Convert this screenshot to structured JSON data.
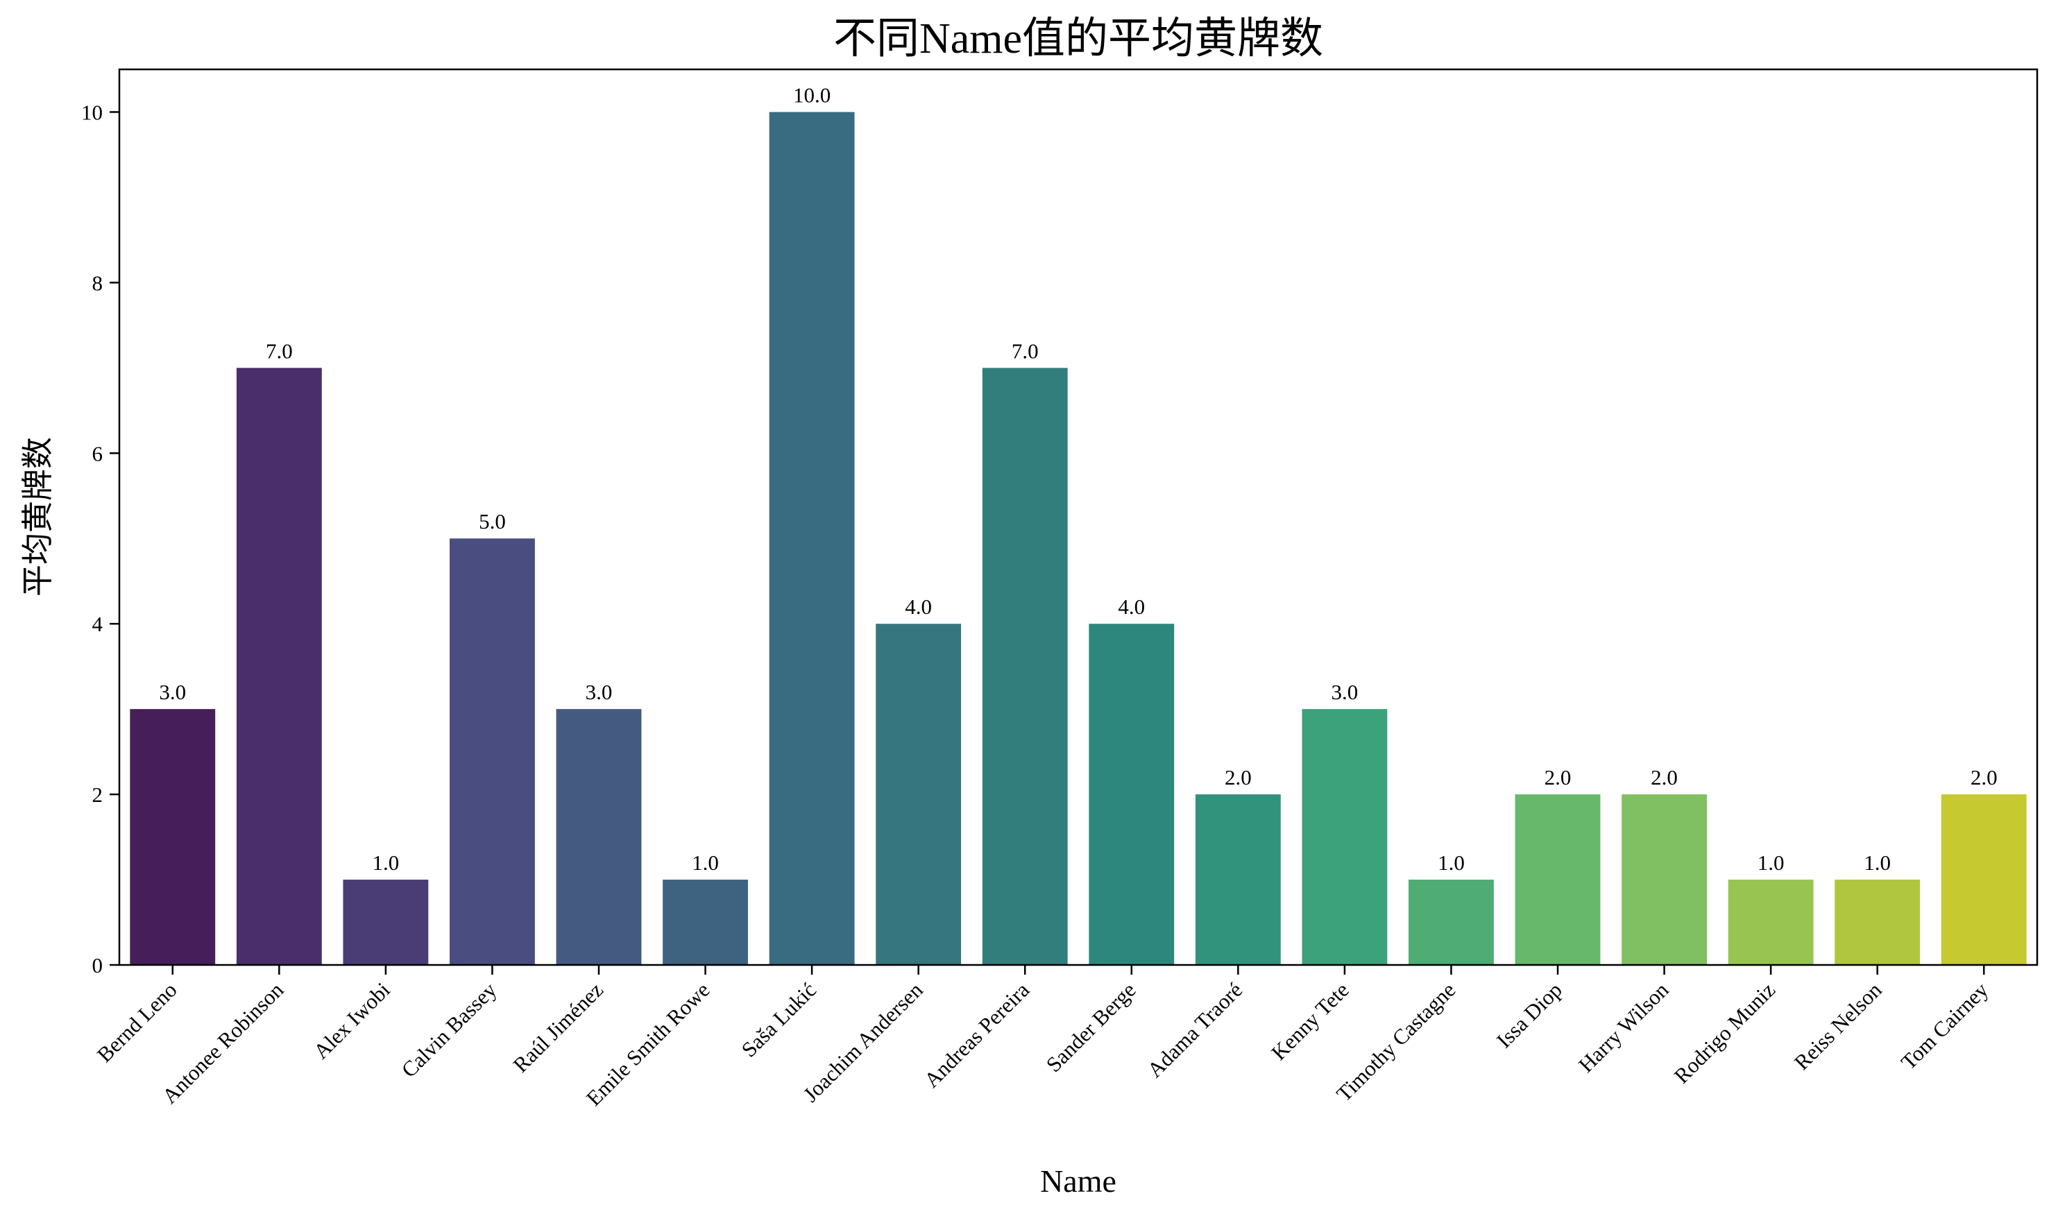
{
  "chart_data": {
    "type": "bar",
    "title": "不同Name值的平均黄牌数",
    "xlabel": "Name",
    "ylabel": "平均黄牌数",
    "categories": [
      "Bernd Leno",
      "Antonee Robinson",
      "Alex Iwobi",
      "Calvin Bassey",
      "Raúl Jiménez",
      "Emile Smith Rowe",
      "Saša Lukić",
      "Joachim Andersen",
      "Andreas Pereira",
      "Sander Berge",
      "Adama Traoré",
      "Kenny Tete",
      "Timothy Castagne",
      "Issa Diop",
      "Harry Wilson",
      "Rodrigo Muniz",
      "Reiss Nelson",
      "Tom Cairney"
    ],
    "values": [
      3.0,
      7.0,
      1.0,
      5.0,
      3.0,
      1.0,
      10.0,
      4.0,
      7.0,
      4.0,
      2.0,
      3.0,
      1.0,
      2.0,
      2.0,
      1.0,
      1.0,
      2.0
    ],
    "data_labels": [
      "3.0",
      "7.0",
      "1.0",
      "5.0",
      "3.0",
      "1.0",
      "10.0",
      "4.0",
      "7.0",
      "4.0",
      "2.0",
      "3.0",
      "1.0",
      "2.0",
      "2.0",
      "1.0",
      "1.0",
      "2.0"
    ],
    "yticks": [
      0,
      2,
      4,
      6,
      8,
      10
    ],
    "ylim": [
      0,
      10.5
    ],
    "grid": false,
    "colors": [
      "#461e5a",
      "#4a2e6b",
      "#4a3d75",
      "#4a4d7f",
      "#445a80",
      "#3e6381",
      "#396c80",
      "#36767f",
      "#317e7d",
      "#2e877c",
      "#32937c",
      "#3ca27b",
      "#4eac74",
      "#67b86b",
      "#80c062",
      "#98c452",
      "#b0c63e",
      "#c6c930"
    ]
  }
}
